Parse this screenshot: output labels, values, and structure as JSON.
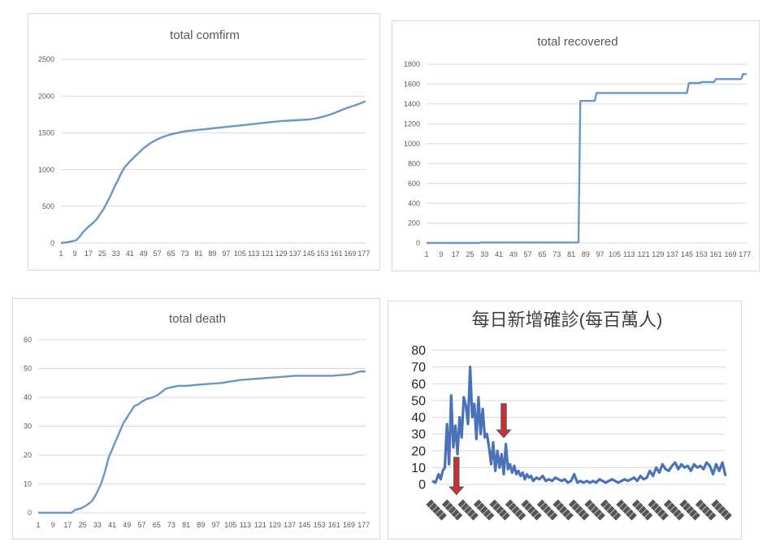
{
  "chart_data": [
    {
      "type": "line",
      "title": "total comfirm",
      "xlabel": "",
      "ylabel": "",
      "x_tick_labels": [
        "1",
        "9",
        "17",
        "25",
        "33",
        "41",
        "49",
        "57",
        "65",
        "73",
        "81",
        "89",
        "97",
        "105",
        "113",
        "121",
        "129",
        "137",
        "145",
        "153",
        "161",
        "169",
        "177"
      ],
      "ylim": [
        0,
        2500
      ],
      "y_ticks": [
        0,
        500,
        1000,
        1500,
        2000,
        2500
      ],
      "grid": true,
      "color": "#6a96cc",
      "series": [
        {
          "x": [
            1,
            5,
            8,
            10,
            12,
            14,
            16,
            18,
            20,
            22,
            24,
            26,
            28,
            30,
            32,
            34,
            36,
            38,
            41,
            45,
            49,
            53,
            57,
            61,
            65,
            69,
            73,
            81,
            89,
            97,
            105,
            113,
            121,
            129,
            137,
            145,
            150,
            155,
            160,
            165,
            170,
            175,
            178
          ],
          "values": [
            0,
            10,
            25,
            40,
            90,
            150,
            200,
            240,
            280,
            330,
            400,
            470,
            560,
            650,
            760,
            850,
            950,
            1030,
            1110,
            1200,
            1290,
            1360,
            1410,
            1450,
            1480,
            1500,
            1520,
            1540,
            1560,
            1580,
            1600,
            1620,
            1640,
            1660,
            1670,
            1680,
            1700,
            1730,
            1770,
            1820,
            1860,
            1900,
            1930
          ]
        }
      ]
    },
    {
      "type": "line",
      "title": "total recovered",
      "xlabel": "",
      "ylabel": "",
      "x_tick_labels": [
        "1",
        "9",
        "17",
        "25",
        "33",
        "41",
        "49",
        "57",
        "65",
        "73",
        "81",
        "89",
        "97",
        "105",
        "113",
        "121",
        "129",
        "137",
        "145",
        "153",
        "161",
        "169",
        "177"
      ],
      "ylim": [
        0,
        1800
      ],
      "y_ticks": [
        0,
        200,
        400,
        600,
        800,
        1000,
        1200,
        1400,
        1600,
        1800
      ],
      "grid": true,
      "color": "#6a96cc",
      "series": [
        {
          "x": [
            1,
            30,
            31,
            85,
            86,
            94,
            95,
            145,
            146,
            152,
            153,
            160,
            161,
            175,
            176,
            178
          ],
          "values": [
            0,
            0,
            5,
            5,
            1430,
            1430,
            1510,
            1510,
            1610,
            1610,
            1620,
            1620,
            1650,
            1650,
            1700,
            1700
          ]
        }
      ]
    },
    {
      "type": "line",
      "title": "total death",
      "xlabel": "",
      "ylabel": "",
      "x_tick_labels": [
        "1",
        "9",
        "17",
        "25",
        "33",
        "41",
        "49",
        "57",
        "65",
        "73",
        "81",
        "89",
        "97",
        "105",
        "113",
        "121",
        "129",
        "137",
        "145",
        "153",
        "161",
        "169",
        "177"
      ],
      "ylim": [
        0,
        60
      ],
      "y_ticks": [
        0,
        10,
        20,
        30,
        40,
        50,
        60
      ],
      "grid": true,
      "color": "#6a96cc",
      "series": [
        {
          "x": [
            1,
            19,
            21,
            24,
            27,
            30,
            32,
            35,
            37,
            39,
            41,
            43,
            45,
            47,
            49,
            51,
            53,
            55,
            57,
            60,
            63,
            66,
            70,
            73,
            77,
            81,
            90,
            100,
            110,
            120,
            130,
            140,
            150,
            160,
            170,
            175,
            178
          ],
          "values": [
            0,
            0,
            1,
            1.5,
            2.5,
            4,
            6,
            10,
            14,
            19,
            22,
            25,
            28,
            31,
            33,
            35,
            37,
            37.5,
            38.5,
            39.5,
            40,
            41,
            43,
            43.5,
            44,
            44,
            44.5,
            45,
            46,
            46.5,
            47,
            47.5,
            47.5,
            47.5,
            48,
            49,
            49
          ]
        }
      ]
    },
    {
      "type": "line",
      "title": "每日新增確診(每百萬人)",
      "xlabel": "",
      "ylabel": "",
      "ylim": [
        0,
        80
      ],
      "y_ticks": [
        0,
        10,
        20,
        30,
        40,
        50,
        60,
        70,
        80
      ],
      "grid": true,
      "color": "#4a72b8",
      "arrow_color": "#e0282c",
      "series": [
        {
          "x": [
            1,
            4,
            7,
            9,
            11,
            13,
            15,
            17,
            19,
            21,
            23,
            25,
            27,
            29,
            31,
            33,
            35,
            37,
            39,
            41,
            43,
            45,
            47,
            49,
            51,
            53,
            55,
            57,
            59,
            61,
            63,
            65,
            67,
            69,
            71,
            73,
            75,
            77,
            79,
            81,
            83,
            85,
            87,
            89,
            91,
            93,
            95,
            97,
            100,
            103,
            106,
            109,
            112,
            115,
            118,
            121,
            124,
            127,
            130,
            133,
            136,
            139,
            142,
            145,
            148,
            151,
            154,
            157,
            160,
            163,
            166,
            169,
            172,
            175,
            178,
            181,
            184,
            187,
            190,
            193,
            196,
            199,
            202,
            205,
            208,
            211,
            214,
            217,
            220,
            223,
            226,
            229,
            232,
            235,
            238,
            241,
            244,
            247,
            250,
            253,
            256,
            259,
            262,
            265,
            268,
            271,
            274,
            277,
            280
          ],
          "values": [
            2,
            1,
            6,
            3,
            8,
            10,
            36,
            12,
            53,
            22,
            35,
            18,
            40,
            28,
            52,
            47,
            36,
            70,
            40,
            48,
            27,
            52,
            30,
            45,
            28,
            30,
            22,
            12,
            25,
            8,
            20,
            10,
            18,
            6,
            24,
            9,
            12,
            7,
            11,
            6,
            8,
            5,
            7,
            3,
            6,
            4,
            5,
            2,
            4,
            3,
            5,
            2,
            3,
            2,
            4,
            3,
            2,
            3,
            1,
            2,
            6,
            1,
            2,
            1,
            2,
            1,
            2,
            1,
            3,
            2,
            1,
            2,
            3,
            2,
            1,
            2,
            3,
            2,
            3,
            4,
            2,
            5,
            3,
            4,
            8,
            5,
            10,
            7,
            12,
            9,
            8,
            11,
            13,
            9,
            12,
            10,
            11,
            8,
            12,
            10,
            11,
            9,
            13,
            11,
            6,
            12,
            8,
            13,
            5
          ]
        }
      ]
    }
  ]
}
